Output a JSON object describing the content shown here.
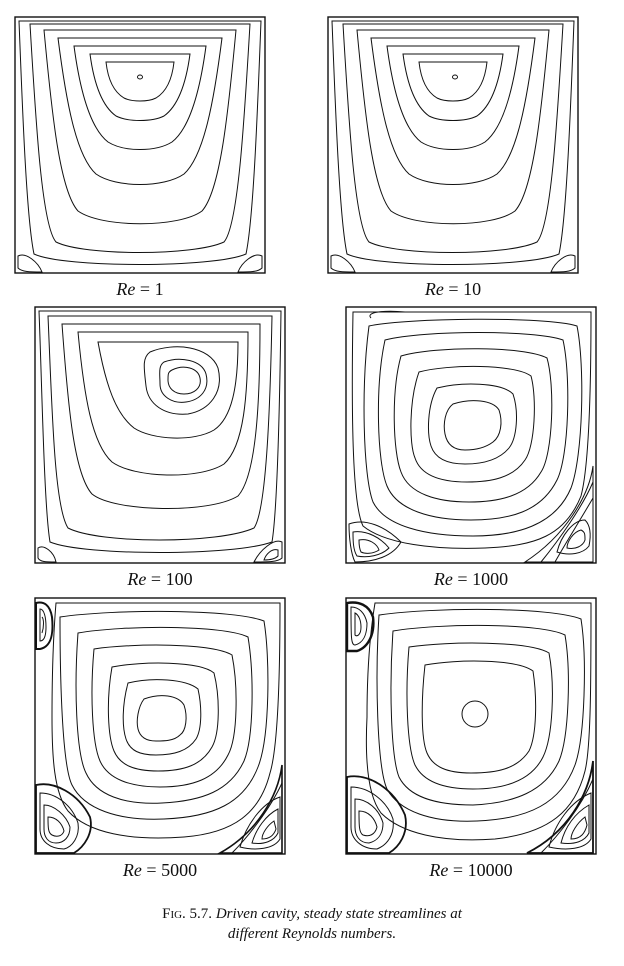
{
  "figure": {
    "label_prefix": "Re",
    "label_equals": " = ",
    "panels": [
      {
        "re_value": "1"
      },
      {
        "re_value": "10"
      },
      {
        "re_value": "100"
      },
      {
        "re_value": "1000"
      },
      {
        "re_value": "5000"
      },
      {
        "re_value": "10000"
      }
    ],
    "caption_number": "Fig. 5.7.",
    "caption_line1": "Driven cavity, steady state streamlines at",
    "caption_line2": "different Reynolds numbers."
  }
}
